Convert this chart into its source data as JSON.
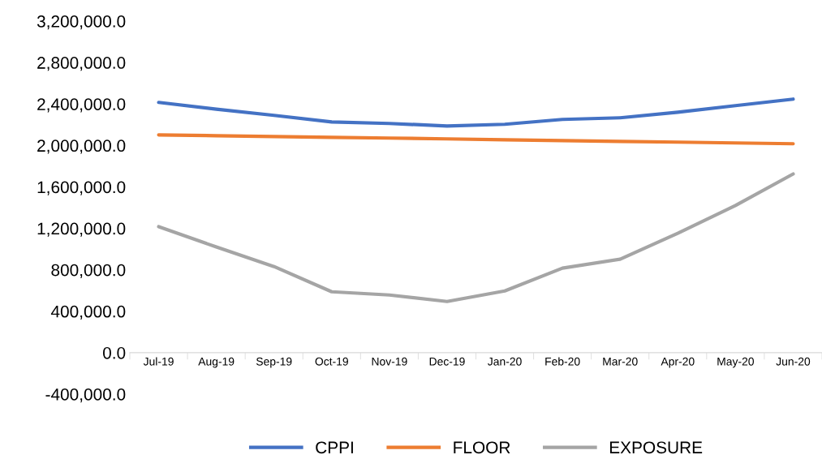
{
  "chart_data": {
    "type": "line",
    "categories": [
      "Jul-19",
      "Aug-19",
      "Sep-19",
      "Oct-19",
      "Nov-19",
      "Dec-19",
      "Jan-20",
      "Feb-20",
      "Mar-20",
      "Apr-20",
      "May-20",
      "Jun-20"
    ],
    "series": [
      {
        "name": "CPPI",
        "color": "#4472c4",
        "values": [
          2415000,
          2350000,
          2290000,
          2227000,
          2212000,
          2188000,
          2204000,
          2251000,
          2267000,
          2321000,
          2384000,
          2447000
        ]
      },
      {
        "name": "FLOOR",
        "color": "#ed7d31",
        "values": [
          2102000,
          2094000,
          2086000,
          2078000,
          2071000,
          2063000,
          2055000,
          2047000,
          2039000,
          2032000,
          2024000,
          2016000
        ]
      },
      {
        "name": "EXPOSURE",
        "color": "#a5a5a5",
        "values": [
          1216000,
          1020000,
          831000,
          588000,
          557000,
          494000,
          596000,
          816000,
          902000,
          1153000,
          1420000,
          1725000
        ]
      }
    ],
    "ylim": [
      -400000,
      3200000
    ],
    "yticks": [
      {
        "value": -400000,
        "label": "-400,000.0"
      },
      {
        "value": 0,
        "label": "0.0"
      },
      {
        "value": 400000,
        "label": "400,000.0"
      },
      {
        "value": 800000,
        "label": "800,000.0"
      },
      {
        "value": 1200000,
        "label": "1,200,000.0"
      },
      {
        "value": 1600000,
        "label": "1,600,000.0"
      },
      {
        "value": 2000000,
        "label": "2,000,000.0"
      },
      {
        "value": 2400000,
        "label": "2,400,000.0"
      },
      {
        "value": 2800000,
        "label": "2,800,000.0"
      },
      {
        "value": 3200000,
        "label": "3,200,000.0"
      }
    ],
    "grid": false,
    "legend": "bottom",
    "marker": "none",
    "line_style": "solid"
  }
}
